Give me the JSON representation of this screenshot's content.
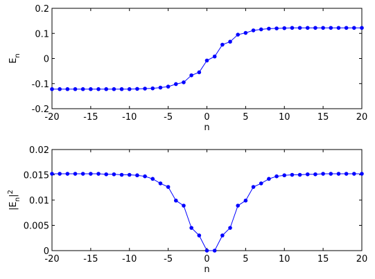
{
  "chart_data": [
    {
      "type": "line",
      "xlabel": "n",
      "ylabel": {
        "base": "E",
        "sub": "n"
      },
      "x": [
        -20,
        -19,
        -18,
        -17,
        -16,
        -15,
        -14,
        -13,
        -12,
        -11,
        -10,
        -9,
        -8,
        -7,
        -6,
        -5,
        -4,
        -3,
        -2,
        -1,
        0,
        1,
        2,
        3,
        4,
        5,
        6,
        7,
        8,
        9,
        10,
        11,
        12,
        13,
        14,
        15,
        16,
        17,
        18,
        19,
        20
      ],
      "series": [
        {
          "color": "#0000ff",
          "values": [
            -0.122,
            -0.122,
            -0.122,
            -0.122,
            -0.122,
            -0.122,
            -0.122,
            -0.122,
            -0.122,
            -0.122,
            -0.122,
            -0.121,
            -0.12,
            -0.119,
            -0.116,
            -0.112,
            -0.102,
            -0.095,
            -0.067,
            -0.055,
            -0.008,
            0.008,
            0.055,
            0.067,
            0.095,
            0.102,
            0.112,
            0.116,
            0.119,
            0.12,
            0.121,
            0.122,
            0.122,
            0.122,
            0.122,
            0.122,
            0.122,
            0.122,
            0.122,
            0.122,
            0.122
          ]
        }
      ],
      "xlim": [
        -20,
        20
      ],
      "xticks": [
        -20,
        -15,
        -10,
        -5,
        0,
        5,
        10,
        15,
        20
      ],
      "ylim": [
        -0.2,
        0.2
      ],
      "yticks": [
        -0.2,
        -0.1,
        0,
        0.1,
        0.2
      ]
    },
    {
      "type": "line",
      "xlabel": "n",
      "ylabel": {
        "base": "|E",
        "sub": "n",
        "close": "|",
        "sup": "2"
      },
      "x": [
        -20,
        -19,
        -18,
        -17,
        -16,
        -15,
        -14,
        -13,
        -12,
        -11,
        -10,
        -9,
        -8,
        -7,
        -6,
        -5,
        -4,
        -3,
        -2,
        -1,
        0,
        1,
        2,
        3,
        4,
        5,
        6,
        7,
        8,
        9,
        10,
        11,
        12,
        13,
        14,
        15,
        16,
        17,
        18,
        19,
        20
      ],
      "series": [
        {
          "color": "#0000ff",
          "values": [
            0.0152,
            0.0152,
            0.0152,
            0.0152,
            0.0152,
            0.0152,
            0.0152,
            0.0151,
            0.0151,
            0.015,
            0.015,
            0.0149,
            0.0147,
            0.0142,
            0.0133,
            0.0126,
            0.0099,
            0.0089,
            0.0045,
            0.003,
            0,
            0,
            0.003,
            0.0045,
            0.0089,
            0.0099,
            0.0126,
            0.0133,
            0.0142,
            0.0147,
            0.0149,
            0.015,
            0.015,
            0.0151,
            0.0151,
            0.0152,
            0.0152,
            0.0152,
            0.0152,
            0.0152,
            0.0152
          ]
        }
      ],
      "xlim": [
        -20,
        20
      ],
      "xticks": [
        -20,
        -15,
        -10,
        -5,
        0,
        5,
        10,
        15,
        20
      ],
      "ylim": [
        0,
        0.02
      ],
      "yticks": [
        0,
        0.005,
        0.01,
        0.015,
        0.02
      ]
    }
  ]
}
